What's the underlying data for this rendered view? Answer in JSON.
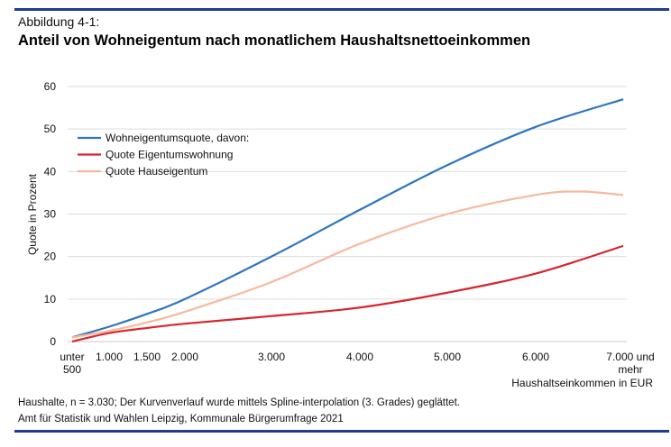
{
  "header": {
    "figure_label": "Abbildung 4-1:",
    "title": "Anteil von Wohneigentum nach monatlichem Haushaltsnettoeinkommen"
  },
  "notes": [
    "Haushalte, n = 3.030; Der Kurvenverlauf wurde mittels Spline-interpolation (3. Grades) geglättet.",
    "Amt für Statistik und Wahlen Leipzig, Kommunale Bürgerumfrage 2021"
  ],
  "chart_data": {
    "type": "line",
    "title": "Anteil von Wohneigentum nach monatlichem Haushaltsnettoeinkommen",
    "xlabel": "Haushaltseinkommen in EUR",
    "ylabel": "Quote in Prozent",
    "ylim": [
      0,
      60
    ],
    "yticks": [
      0,
      10,
      20,
      30,
      40,
      50,
      60
    ],
    "xticks": [
      {
        "v": 500,
        "label": [
          "unter",
          "500"
        ]
      },
      {
        "v": 1000,
        "label": [
          "1.000"
        ]
      },
      {
        "v": 1500,
        "label": [
          "1.500"
        ]
      },
      {
        "v": 2000,
        "label": [
          "2.000"
        ]
      },
      {
        "v": 3000,
        "label": [
          "3.000"
        ]
      },
      {
        "v": 4000,
        "label": [
          "4.000"
        ]
      },
      {
        "v": 5000,
        "label": [
          "5.000"
        ]
      },
      {
        "v": 6000,
        "label": [
          "6.000"
        ]
      },
      {
        "v": 7000,
        "label": [
          "7.000 und",
          "mehr"
        ]
      }
    ],
    "grid": "horizontal",
    "legend": "top-left",
    "series": [
      {
        "name": "Wohneigentumsquote, davon:",
        "color": "#2e75c0",
        "x": [
          500,
          1000,
          1500,
          2000,
          3000,
          4000,
          5000,
          6000,
          7000
        ],
        "y": [
          1,
          3.5,
          6.5,
          10,
          20,
          31,
          41.5,
          50.5,
          57
        ]
      },
      {
        "name": "Quote Eigentumswohnung",
        "color": "#d7262d",
        "x": [
          500,
          1000,
          1500,
          2000,
          3000,
          4000,
          5000,
          6000,
          7000
        ],
        "y": [
          0,
          2,
          3.2,
          4.2,
          6,
          8,
          11.5,
          16,
          22.5
        ]
      },
      {
        "name": "Quote Hauseigentum",
        "color": "#f8b89e",
        "x": [
          500,
          1000,
          1500,
          2000,
          3000,
          4000,
          5000,
          6000,
          6500,
          7000
        ],
        "y": [
          1,
          2.5,
          4.5,
          7,
          14,
          23,
          30,
          34.5,
          35.3,
          34.5
        ]
      }
    ]
  }
}
